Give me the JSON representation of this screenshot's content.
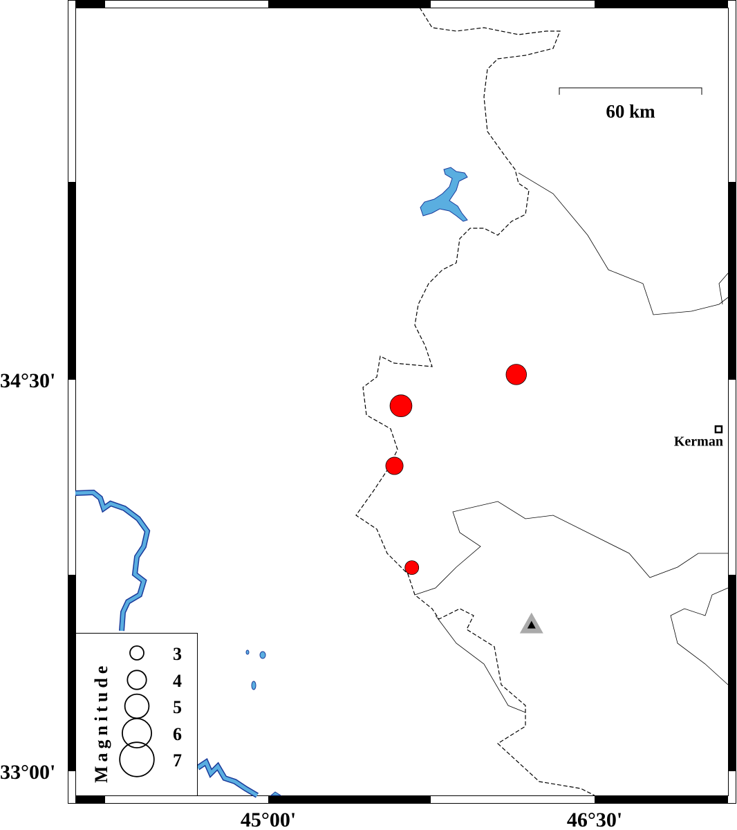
{
  "map": {
    "x_ticks": [
      {
        "label": "45°00'",
        "lon": 45.0
      },
      {
        "label": "46°30'",
        "lon": 46.5
      }
    ],
    "y_ticks": [
      {
        "label": "34°30'",
        "lat": 34.5
      },
      {
        "label": "33°00'",
        "lat": 33.0
      }
    ],
    "scale_bar": {
      "label": "60 km"
    },
    "city": {
      "name": "Kerman",
      "lon": 47.07,
      "lat": 34.31
    },
    "station": {
      "lon": 46.21,
      "lat": 33.56,
      "icon": "triangle-icon"
    },
    "events": [
      {
        "lon": 46.14,
        "lat": 34.52,
        "mag": 4.3
      },
      {
        "lon": 45.61,
        "lat": 34.4,
        "mag": 4.6
      },
      {
        "lon": 45.58,
        "lat": 34.17,
        "mag": 3.7
      },
      {
        "lon": 45.66,
        "lat": 33.78,
        "mag": 3.0
      }
    ],
    "colors": {
      "event": "#ff0000",
      "water": "#5aaee0",
      "station": "#aaaaaa"
    }
  },
  "legend": {
    "title": "Magnitude",
    "items": [
      {
        "label": "3",
        "mag": 3
      },
      {
        "label": "4",
        "mag": 4
      },
      {
        "label": "5",
        "mag": 5
      },
      {
        "label": "6",
        "mag": 6
      },
      {
        "label": "7",
        "mag": 7
      }
    ]
  }
}
